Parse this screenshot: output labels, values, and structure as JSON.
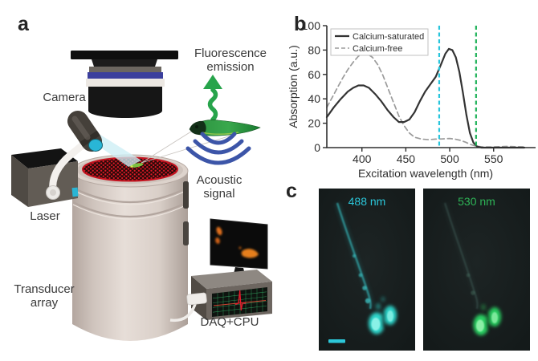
{
  "figure": {
    "background": "#ffffff",
    "panel_labels": {
      "a": "a",
      "b": "b",
      "c": "c"
    }
  },
  "panel_a": {
    "labels": {
      "camera": "Camera",
      "laser": "Laser",
      "transducer": "Transducer array",
      "daq": "DAQ+CPU",
      "fluorescence": "Fluorescence emission",
      "acoustic": "Acoustic signal"
    },
    "colors": {
      "laser_beam": "#cdeef5",
      "laser_lens": "#29b6d6",
      "acoustic_waves": "#3c55a8",
      "fluorescence_arrow": "#27a44b",
      "transducer_mesh_red": "#df1a26",
      "bucket_body": "#d9cfc8",
      "monitor_blobs_orange": "#e0701c"
    }
  },
  "chart_data": {
    "type": "line",
    "xlabel": "Excitation wavelength (nm)",
    "ylabel": "Absorption (a.u.)",
    "xlim": [
      360,
      585
    ],
    "ylim": [
      0,
      100
    ],
    "xticks": [
      400,
      450,
      500,
      550
    ],
    "yticks": [
      0,
      20,
      40,
      60,
      80,
      100
    ],
    "grid": false,
    "legend": {
      "position": "top-left",
      "border_color": "#c2c2c2"
    },
    "series": [
      {
        "name": "Calcium-saturated",
        "line_style": "solid",
        "color": "#333333",
        "x": [
          360,
          368,
          376,
          384,
          390,
          396,
          402,
          408,
          415,
          422,
          429,
          436,
          442,
          448,
          454,
          460,
          466,
          472,
          478,
          484,
          490,
          495,
          499,
          503,
          507,
          511,
          515,
          519,
          523,
          527,
          531,
          536,
          545,
          560,
          585
        ],
        "y": [
          25,
          33,
          40,
          46,
          49,
          51,
          51,
          49,
          44,
          38,
          31,
          25,
          21,
          21,
          23,
          29,
          38,
          46,
          52,
          58,
          68,
          77,
          81,
          80,
          74,
          62,
          45,
          27,
          12,
          4,
          1,
          0,
          0,
          0,
          0
        ]
      },
      {
        "name": "Calcium-free",
        "line_style": "dashed",
        "color": "#9b9b9b",
        "x": [
          360,
          366,
          372,
          378,
          384,
          390,
          396,
          401,
          406,
          412,
          418,
          424,
          430,
          436,
          442,
          448,
          454,
          460,
          468,
          476,
          484,
          492,
          500,
          506,
          512,
          518,
          524,
          530,
          538,
          550,
          565,
          585
        ],
        "y": [
          33,
          41,
          49,
          57,
          64,
          70,
          75,
          77,
          77,
          74,
          68,
          59,
          48,
          37,
          26,
          18,
          12,
          8.5,
          7,
          6.5,
          7,
          7.2,
          7.5,
          7,
          6,
          4.5,
          2.5,
          1.2,
          0.5,
          0.5,
          1,
          0.5
        ]
      }
    ],
    "vlines": [
      {
        "x": 488,
        "color": "#27c5dc"
      },
      {
        "x": 530,
        "color": "#22b35b"
      }
    ]
  },
  "panel_c": {
    "images": [
      {
        "label": "488 nm",
        "label_color": "#2bc7da",
        "blob_color": "#2fd6cb",
        "has_scale_bar": true
      },
      {
        "label": "530 nm",
        "label_color": "#2eb457",
        "blob_color": "#2bd264",
        "has_scale_bar": false
      }
    ]
  }
}
